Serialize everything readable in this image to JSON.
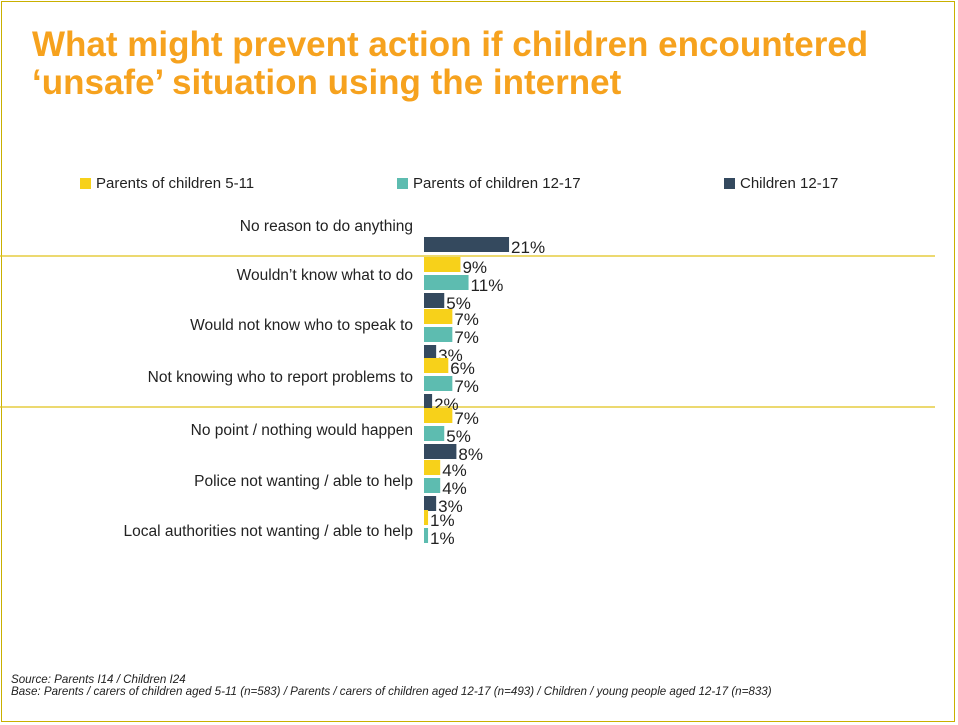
{
  "title": "What might prevent action if children encountered ‘unsafe’ situation using the internet",
  "legend": [
    {
      "label": "Parents of children 5-11",
      "color": "#f7d11a"
    },
    {
      "label": "Parents of children 12-17",
      "color": "#5dbcb0"
    },
    {
      "label": "Children 12-17",
      "color": "#34495e"
    }
  ],
  "source_line": "Source: Parents I14 / Children I24",
  "base_line": "Base: Parents / carers of children aged 5-11 (n=583) / Parents / carers of children aged 12-17 (n=493) / Children / young people aged 12-17 (n=833)",
  "chart_data": {
    "type": "bar",
    "orientation": "horizontal",
    "value_suffix": "%",
    "categories": [
      "No reason to do anything",
      "Wouldn’t know what to do",
      "Would not know who to speak to",
      "Not knowing who to report problems to",
      "No point / nothing would happen",
      "Police not wanting / able to help",
      "Local authorities not wanting / able to help"
    ],
    "series": [
      {
        "name": "Parents of children 5-11",
        "color": "#f7d11a",
        "values": [
          null,
          9,
          7,
          6,
          7,
          4,
          1
        ]
      },
      {
        "name": "Parents of children 12-17",
        "color": "#5dbcb0",
        "values": [
          null,
          11,
          7,
          7,
          5,
          4,
          1
        ]
      },
      {
        "name": "Children 12-17",
        "color": "#34495e",
        "values": [
          21,
          5,
          3,
          2,
          8,
          3,
          null
        ]
      }
    ],
    "separators_after": [
      "No reason to do anything",
      "Not knowing who to report problems to"
    ],
    "separator_color": "#e0c21a",
    "legend_position": "top",
    "grid": false
  }
}
